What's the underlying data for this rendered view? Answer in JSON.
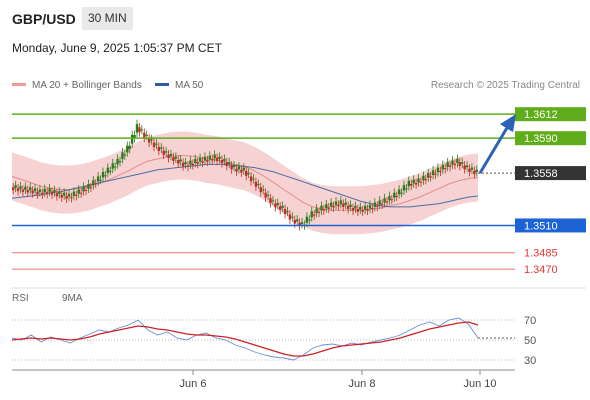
{
  "header": {
    "symbol": "GBP/USD",
    "timeframe": "30 MIN"
  },
  "date": "Monday, June 9, 2025 1:05:37 PM CET",
  "legend": {
    "bollinger": "MA 20 + Bollinger Bands",
    "ma50": "MA 50",
    "research": "Research © 2025 Trading Central"
  },
  "rsi_legend": {
    "rsi": "RSI",
    "ma9": "9MA"
  },
  "colors": {
    "resistance": "#5fad1a",
    "current": "#333333",
    "support": "#1e63d6",
    "lower_support": "#e53935",
    "bollinger_fill": "#f5caca",
    "ma20": "#e88a8a",
    "ma50": "#4a6da8",
    "rsi": "#6b8fd6",
    "rsi_ma": "#cc2222",
    "arrow": "#2a62b8",
    "candle_up": "#2d7a1e",
    "candle_down": "#c62828"
  },
  "chart_data": [
    {
      "type": "line",
      "title": "GBP/USD",
      "timeframe": "30 MIN",
      "x_ticks": [
        "Jun 6",
        "Jun 8",
        "Jun 10"
      ],
      "ylim": [
        1.346,
        1.3625
      ],
      "levels": [
        {
          "label": "1.3612",
          "value": 1.3612,
          "role": "resistance"
        },
        {
          "label": "1.3590",
          "value": 1.359,
          "role": "resistance"
        },
        {
          "label": "1.3558",
          "value": 1.3558,
          "role": "current"
        },
        {
          "label": "1.3510",
          "value": 1.351,
          "role": "support"
        },
        {
          "label": "1.3485",
          "value": 1.3485,
          "role": "lower_support"
        },
        {
          "label": "1.3470",
          "value": 1.347,
          "role": "lower_support"
        }
      ],
      "price_path": [
        1.3545,
        1.3543,
        1.3542,
        1.354,
        1.3541,
        1.3538,
        1.3536,
        1.354,
        1.3545,
        1.3552,
        1.356,
        1.3568,
        1.358,
        1.36,
        1.359,
        1.3582,
        1.3575,
        1.357,
        1.3565,
        1.3568,
        1.357,
        1.3572,
        1.3568,
        1.3562,
        1.356,
        1.355,
        1.354,
        1.353,
        1.3525,
        1.3515,
        1.351,
        1.352,
        1.3525,
        1.3528,
        1.353,
        1.3526,
        1.3524,
        1.3526,
        1.353,
        1.3534,
        1.354,
        1.3548,
        1.355,
        1.3555,
        1.356,
        1.3565,
        1.3568,
        1.3562,
        1.3558
      ],
      "ma20": [
        1.3555,
        1.3552,
        1.3549,
        1.3546,
        1.3544,
        1.3543,
        1.3543,
        1.3544,
        1.3546,
        1.3549,
        1.3552,
        1.3556,
        1.356,
        1.3565,
        1.3569,
        1.3571,
        1.3573,
        1.3574,
        1.3574,
        1.3573,
        1.3571,
        1.357,
        1.3568,
        1.3566,
        1.3564,
        1.356,
        1.3555,
        1.3549,
        1.3543,
        1.3537,
        1.3531,
        1.3527,
        1.3525,
        1.3524,
        1.3524,
        1.3524,
        1.3524,
        1.3525,
        1.3526,
        1.3528,
        1.353,
        1.3533,
        1.3536,
        1.354,
        1.3544,
        1.3548,
        1.3551,
        1.3553,
        1.3554
      ],
      "ma50": [
        1.3535,
        1.3536,
        1.3537,
        1.3538,
        1.354,
        1.3541,
        1.3543,
        1.3545,
        1.3547,
        1.3549,
        1.3551,
        1.3553,
        1.3555,
        1.3557,
        1.3559,
        1.3561,
        1.3562,
        1.3563,
        1.3564,
        1.3565,
        1.3566,
        1.3566,
        1.3566,
        1.3565,
        1.3564,
        1.3563,
        1.3561,
        1.3559,
        1.3556,
        1.3553,
        1.355,
        1.3547,
        1.3544,
        1.3541,
        1.3538,
        1.3535,
        1.3532,
        1.353,
        1.3528,
        1.3527,
        1.3527,
        1.3527,
        1.3528,
        1.3529,
        1.353,
        1.3532,
        1.3534,
        1.3536,
        1.3537
      ],
      "band_width": 0.0022,
      "projection_target": 1.3612
    },
    {
      "type": "line",
      "title": "RSI",
      "ylim": [
        20,
        80
      ],
      "y_ticks": [
        70,
        50,
        30
      ],
      "rsi": [
        52,
        50,
        55,
        48,
        53,
        50,
        47,
        52,
        56,
        60,
        58,
        62,
        65,
        70,
        60,
        55,
        58,
        52,
        50,
        55,
        57,
        52,
        50,
        45,
        42,
        38,
        35,
        33,
        32,
        30,
        35,
        42,
        45,
        46,
        44,
        47,
        45,
        48,
        50,
        52,
        55,
        60,
        65,
        68,
        64,
        70,
        72,
        66,
        52
      ],
      "rsi_ma": [
        50,
        51,
        52,
        51,
        52,
        51,
        50,
        51,
        53,
        56,
        58,
        60,
        62,
        64,
        63,
        61,
        60,
        58,
        56,
        55,
        55,
        54,
        53,
        51,
        48,
        45,
        42,
        39,
        36,
        34,
        34,
        36,
        39,
        42,
        44,
        45,
        46,
        47,
        48,
        50,
        52,
        55,
        58,
        61,
        63,
        65,
        67,
        68,
        65
      ]
    }
  ]
}
